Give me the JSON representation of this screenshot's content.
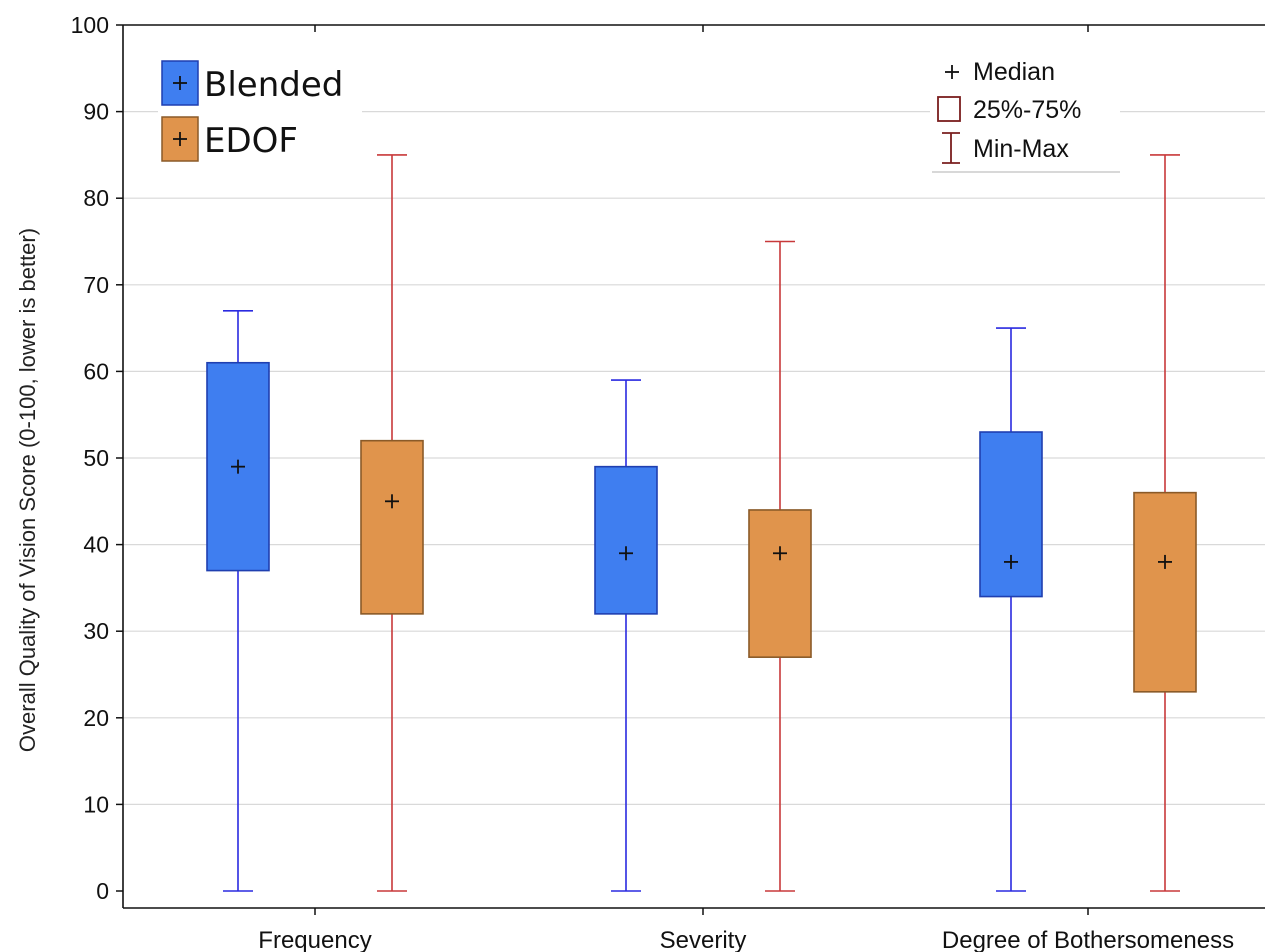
{
  "chart_data": {
    "type": "boxplot",
    "title": "",
    "xlabel": "",
    "ylabel": "Overall Quality of Vision Score (0-100, lower is better)",
    "ylim": [
      0,
      100
    ],
    "yticks": [
      0,
      10,
      20,
      30,
      40,
      50,
      60,
      70,
      80,
      90,
      100
    ],
    "grid": true,
    "categories": [
      "Frequency",
      "Severity",
      "Degree of Bothersomeness"
    ],
    "series": [
      {
        "name": "Blended",
        "fill": "#3f7ef0",
        "edge": "#1f3fb0",
        "whisker": "#2a2ae0",
        "values": [
          {
            "min": 0,
            "q1": 37,
            "median": 49,
            "q3": 61,
            "max": 67
          },
          {
            "min": 0,
            "q1": 32,
            "median": 39,
            "q3": 49,
            "max": 59
          },
          {
            "min": 0,
            "q1": 34,
            "median": 38,
            "q3": 53,
            "max": 65
          }
        ]
      },
      {
        "name": "EDOF",
        "fill": "#e0944c",
        "edge": "#8a5a28",
        "whisker": "#c8393a",
        "values": [
          {
            "min": 0,
            "q1": 32,
            "median": 45,
            "q3": 52,
            "max": 85
          },
          {
            "min": 0,
            "q1": 27,
            "median": 39,
            "q3": 44,
            "max": 75
          },
          {
            "min": 0,
            "q1": 23,
            "median": 38,
            "q3": 46,
            "max": 85
          }
        ]
      }
    ],
    "legend_series_position": "top-left",
    "legend_stats_position": "top-right",
    "legend_stats": {
      "median": "Median",
      "box": "25%-75%",
      "whisker": "Min-Max"
    }
  }
}
